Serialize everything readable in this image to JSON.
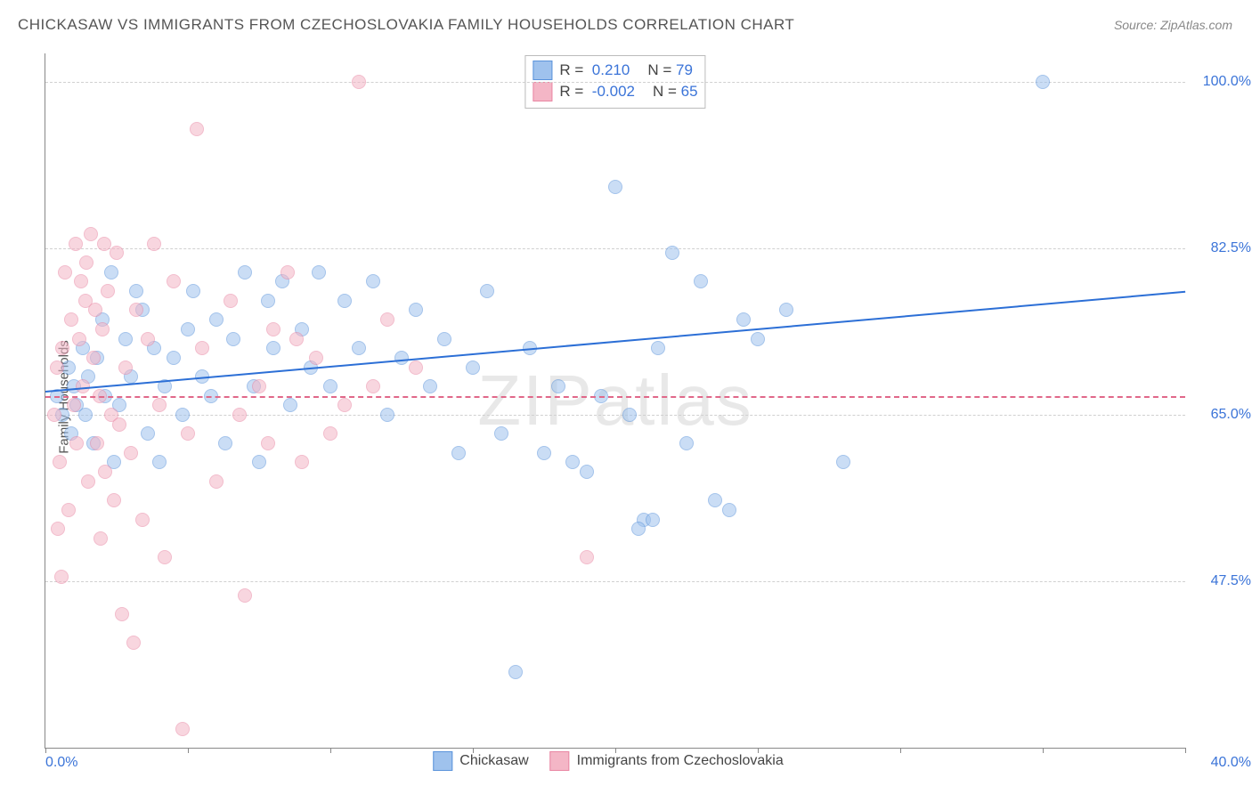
{
  "title": "CHICKASAW VS IMMIGRANTS FROM CZECHOSLOVAKIA FAMILY HOUSEHOLDS CORRELATION CHART",
  "source": "Source: ZipAtlas.com",
  "y_axis_label": "Family Households",
  "watermark": "ZIPatlas",
  "chart": {
    "type": "scatter",
    "xlim": [
      0,
      40
    ],
    "ylim": [
      30,
      103
    ],
    "x_ticks": [
      0,
      5,
      10,
      15,
      20,
      25,
      30,
      35,
      40
    ],
    "x_tick_labels": {
      "0": "0.0%",
      "40": "40.0%"
    },
    "y_grid": [
      47.5,
      65.0,
      82.5,
      100.0
    ],
    "y_grid_labels": [
      "47.5%",
      "65.0%",
      "82.5%",
      "100.0%"
    ],
    "background_color": "#ffffff",
    "grid_color": "#d0d0d0",
    "axis_color": "#888888",
    "tick_label_color": "#3b74d8",
    "tick_fontsize": 16
  },
  "series": [
    {
      "name": "Chickasaw",
      "fill_color": "#9fc2ed",
      "stroke_color": "#5a93db",
      "fill_opacity": 0.55,
      "marker_size": 14,
      "R": "0.210",
      "N": "79",
      "trend": {
        "y_at_x0": 67.5,
        "y_at_x40": 78.0,
        "color": "#2c6fd6",
        "width": 2
      },
      "points": [
        [
          0.4,
          67
        ],
        [
          0.6,
          65
        ],
        [
          0.8,
          70
        ],
        [
          0.9,
          63
        ],
        [
          1.0,
          68
        ],
        [
          1.1,
          66
        ],
        [
          1.3,
          72
        ],
        [
          1.4,
          65
        ],
        [
          1.5,
          69
        ],
        [
          1.7,
          62
        ],
        [
          1.8,
          71
        ],
        [
          2.0,
          75
        ],
        [
          2.1,
          67
        ],
        [
          2.3,
          80
        ],
        [
          2.4,
          60
        ],
        [
          2.6,
          66
        ],
        [
          2.8,
          73
        ],
        [
          3.0,
          69
        ],
        [
          3.2,
          78
        ],
        [
          3.4,
          76
        ],
        [
          3.6,
          63
        ],
        [
          3.8,
          72
        ],
        [
          4.0,
          60
        ],
        [
          4.2,
          68
        ],
        [
          4.5,
          71
        ],
        [
          4.8,
          65
        ],
        [
          5.0,
          74
        ],
        [
          5.2,
          78
        ],
        [
          5.5,
          69
        ],
        [
          5.8,
          67
        ],
        [
          6.0,
          75
        ],
        [
          6.3,
          62
        ],
        [
          6.6,
          73
        ],
        [
          7.0,
          80
        ],
        [
          7.3,
          68
        ],
        [
          7.5,
          60
        ],
        [
          7.8,
          77
        ],
        [
          8.0,
          72
        ],
        [
          8.3,
          79
        ],
        [
          8.6,
          66
        ],
        [
          9.0,
          74
        ],
        [
          9.3,
          70
        ],
        [
          9.6,
          80
        ],
        [
          10.0,
          68
        ],
        [
          10.5,
          77
        ],
        [
          11.0,
          72
        ],
        [
          11.5,
          79
        ],
        [
          12.0,
          65
        ],
        [
          12.5,
          71
        ],
        [
          13.0,
          76
        ],
        [
          13.5,
          68
        ],
        [
          14.0,
          73
        ],
        [
          14.5,
          61
        ],
        [
          15.0,
          70
        ],
        [
          15.5,
          78
        ],
        [
          16.0,
          63
        ],
        [
          16.5,
          38
        ],
        [
          17.0,
          72
        ],
        [
          17.5,
          61
        ],
        [
          18.0,
          68
        ],
        [
          19.0,
          59
        ],
        [
          20.0,
          89
        ],
        [
          20.5,
          65
        ],
        [
          21.0,
          54
        ],
        [
          21.5,
          72
        ],
        [
          22.0,
          82
        ],
        [
          22.5,
          62
        ],
        [
          23.0,
          79
        ],
        [
          24.0,
          55
        ],
        [
          25.0,
          73
        ],
        [
          26.0,
          76
        ],
        [
          28.0,
          60
        ],
        [
          35.0,
          100
        ],
        [
          21.3,
          54
        ],
        [
          18.5,
          60
        ],
        [
          19.5,
          67
        ],
        [
          20.8,
          53
        ],
        [
          23.5,
          56
        ],
        [
          24.5,
          75
        ]
      ]
    },
    {
      "name": "Immigrants from Czechoslovakia",
      "fill_color": "#f4b6c6",
      "stroke_color": "#e986a3",
      "fill_opacity": 0.55,
      "marker_size": 14,
      "R": "-0.002",
      "N": "65",
      "trend": {
        "y_at_x0": 67.0,
        "y_at_x40": 67.0,
        "color": "#e06889",
        "width": 2,
        "dash": true
      },
      "points": [
        [
          0.3,
          65
        ],
        [
          0.4,
          70
        ],
        [
          0.5,
          60
        ],
        [
          0.6,
          72
        ],
        [
          0.7,
          80
        ],
        [
          0.8,
          55
        ],
        [
          0.9,
          75
        ],
        [
          1.0,
          66
        ],
        [
          1.1,
          62
        ],
        [
          1.2,
          73
        ],
        [
          1.3,
          68
        ],
        [
          1.4,
          77
        ],
        [
          1.5,
          58
        ],
        [
          1.6,
          84
        ],
        [
          1.7,
          71
        ],
        [
          1.8,
          62
        ],
        [
          1.9,
          67
        ],
        [
          2.0,
          74
        ],
        [
          2.1,
          59
        ],
        [
          2.2,
          78
        ],
        [
          2.3,
          65
        ],
        [
          2.4,
          56
        ],
        [
          2.5,
          82
        ],
        [
          2.6,
          64
        ],
        [
          2.8,
          70
        ],
        [
          3.0,
          61
        ],
        [
          3.2,
          76
        ],
        [
          3.4,
          54
        ],
        [
          3.6,
          73
        ],
        [
          3.8,
          83
        ],
        [
          4.0,
          66
        ],
        [
          4.2,
          50
        ],
        [
          4.5,
          79
        ],
        [
          5.0,
          63
        ],
        [
          5.5,
          72
        ],
        [
          6.0,
          58
        ],
        [
          6.5,
          77
        ],
        [
          7.0,
          46
        ],
        [
          7.5,
          68
        ],
        [
          8.0,
          74
        ],
        [
          8.5,
          80
        ],
        [
          9.0,
          60
        ],
        [
          9.5,
          71
        ],
        [
          10.0,
          63
        ],
        [
          11.0,
          100
        ],
        [
          11.5,
          68
        ],
        [
          12.0,
          75
        ],
        [
          4.8,
          32
        ],
        [
          3.1,
          41
        ],
        [
          2.7,
          44
        ],
        [
          1.95,
          52
        ],
        [
          0.45,
          53
        ],
        [
          0.55,
          48
        ],
        [
          1.05,
          83
        ],
        [
          1.25,
          79
        ],
        [
          1.45,
          81
        ],
        [
          1.75,
          76
        ],
        [
          2.05,
          83
        ],
        [
          5.3,
          95
        ],
        [
          6.8,
          65
        ],
        [
          7.8,
          62
        ],
        [
          8.8,
          73
        ],
        [
          10.5,
          66
        ],
        [
          13.0,
          70
        ],
        [
          19.0,
          50
        ]
      ]
    }
  ],
  "stat_box": {
    "rows": [
      {
        "swatch_fill": "#9fc2ed",
        "swatch_stroke": "#5a93db",
        "r_label": "R =",
        "r_value": "0.210",
        "n_label": "N =",
        "n_value": "79"
      },
      {
        "swatch_fill": "#f4b6c6",
        "swatch_stroke": "#e986a3",
        "r_label": "R =",
        "r_value": "-0.002",
        "n_label": "N =",
        "n_value": "65"
      }
    ]
  },
  "legend": [
    {
      "swatch_fill": "#9fc2ed",
      "swatch_stroke": "#5a93db",
      "label": "Chickasaw"
    },
    {
      "swatch_fill": "#f4b6c6",
      "swatch_stroke": "#e986a3",
      "label": "Immigrants from Czechoslovakia"
    }
  ]
}
